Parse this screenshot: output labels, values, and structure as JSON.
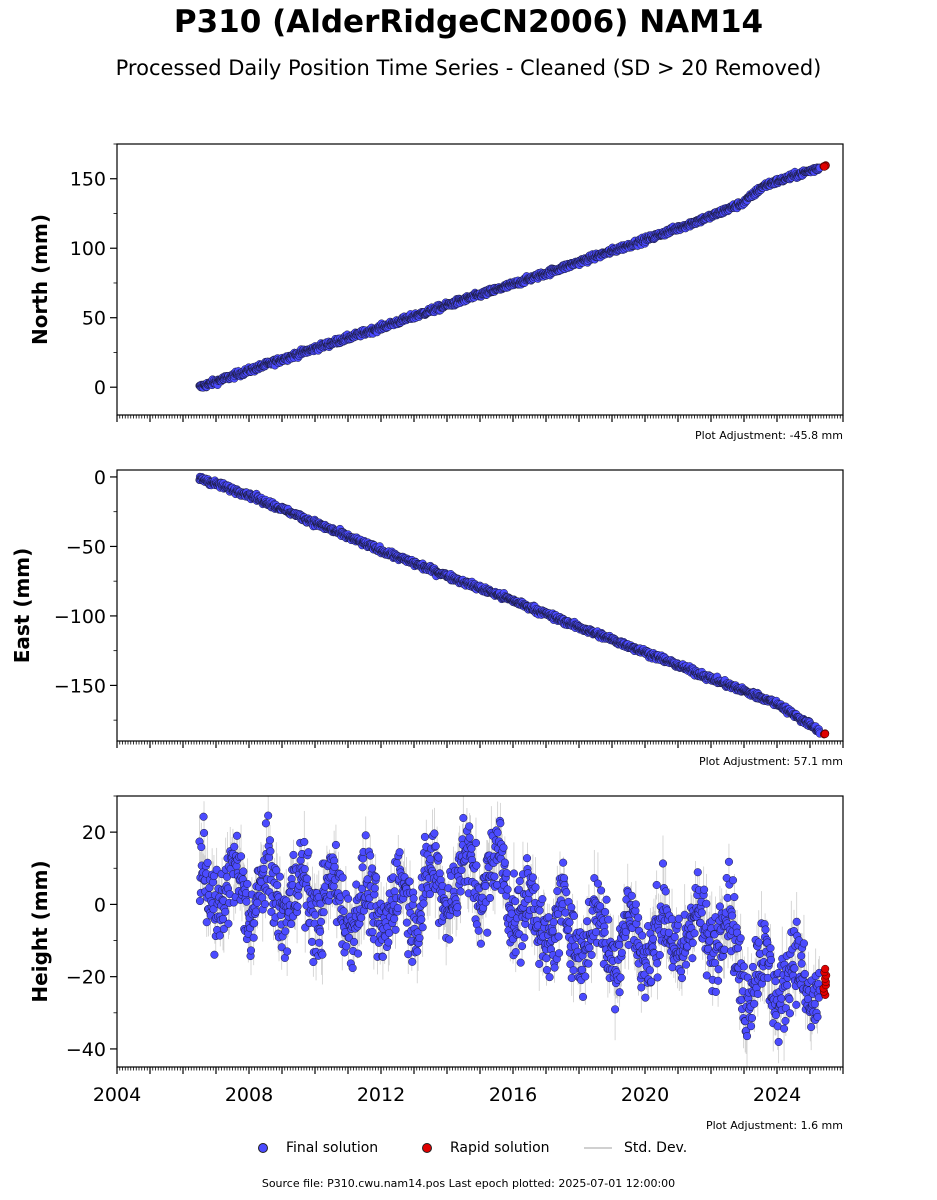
{
  "header": {
    "title": "P310 (AlderRidgeCN2006) NAM14",
    "subtitle": "Processed Daily Position Time Series - Cleaned (SD > 20 Removed)"
  },
  "footer": {
    "source": "Source file: P310.cwu.nam14.pos  Last epoch plotted: 2025-07-01 12:00:00"
  },
  "legend": {
    "final": "Final solution",
    "rapid": "Rapid solution",
    "std": "Std. Dev."
  },
  "colors": {
    "final": "#4b4bff",
    "rapid": "#e00000",
    "std": "#909090"
  },
  "chart_data": [
    {
      "type": "scatter",
      "ylabel": "North (mm)",
      "xlim": [
        2004,
        2026
      ],
      "ylim": [
        -20,
        175
      ],
      "yticks": [
        0,
        50,
        100,
        150
      ],
      "adjustment": "Plot Adjustment: -45.8 mm",
      "series": [
        {
          "x": [
            2006.5,
            2008,
            2010,
            2012,
            2014,
            2016,
            2018,
            2020,
            2022,
            2023.0,
            2023.6,
            2025.3
          ],
          "y": [
            0,
            12,
            28,
            43,
            59,
            74,
            90,
            106,
            123,
            133,
            145,
            158
          ]
        },
        {
          "x": [
            2025.45
          ],
          "y": [
            159
          ]
        }
      ],
      "scatter": 1.5
    },
    {
      "type": "scatter",
      "ylabel": "East (mm)",
      "xlim": [
        2004,
        2026
      ],
      "ylim": [
        -190,
        5
      ],
      "yticks": [
        0,
        -50,
        -100,
        -150
      ],
      "ytick_labels": [
        "0",
        "−50",
        "−100",
        "−150"
      ],
      "adjustment": "Plot Adjustment: 57.1 mm",
      "series": [
        {
          "x": [
            2006.5,
            2008,
            2010,
            2012,
            2014,
            2016,
            2018,
            2020,
            2022,
            2024,
            2025.3
          ],
          "y": [
            -1,
            -13,
            -33,
            -53,
            -71,
            -89,
            -108,
            -126,
            -145,
            -163,
            -183
          ]
        },
        {
          "x": [
            2025.45
          ],
          "y": [
            -185
          ]
        }
      ],
      "scatter": 1.5
    },
    {
      "type": "scatter",
      "ylabel": "Height (mm)",
      "xlim": [
        2004,
        2026
      ],
      "ylim": [
        -45,
        30
      ],
      "yticks": [
        20,
        0,
        -20,
        -40
      ],
      "ytick_labels": [
        "20",
        "0",
        "−20",
        "−40"
      ],
      "xticks": [
        2004,
        2008,
        2012,
        2016,
        2020,
        2024
      ],
      "adjustment": "Plot Adjustment: 1.6 mm",
      "series": [
        {
          "x": [
            2006.5,
            2008,
            2010,
            2012,
            2014,
            2015.5,
            2016.5,
            2018,
            2020,
            2022,
            2022.5,
            2023,
            2024,
            2025.3
          ],
          "y": [
            4,
            3,
            2,
            -2,
            6,
            9,
            -4,
            -8,
            -10,
            -7,
            -5,
            -20,
            -20,
            -22
          ]
        },
        {
          "x": [
            2025.45
          ],
          "y": [
            -21
          ]
        }
      ],
      "scatter": 8,
      "seasonal_amplitude": 7
    }
  ]
}
